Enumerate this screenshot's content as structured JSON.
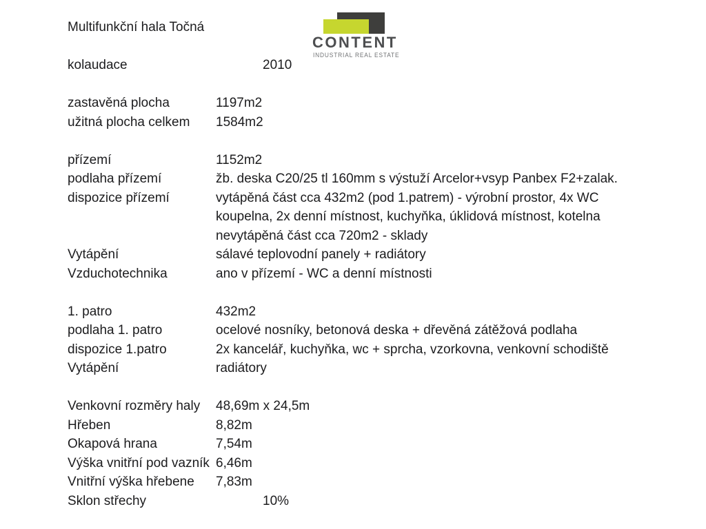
{
  "logo": {
    "name": "CONTENT",
    "tagline": "INDUSTRIAL REAL ESTATE",
    "colors": {
      "dark_shape": "#3e3e3c",
      "accent_shape": "#c6d62f",
      "wordmark_text": "#4d4e50",
      "tagline_text": "#717375"
    }
  },
  "document": {
    "title": "Multifunkční hala Točná",
    "text_color": "#1c1c1e",
    "rows": [
      {
        "type": "title"
      },
      {
        "type": "spacer"
      },
      {
        "label": "kolaudace",
        "value": "2010",
        "indent": true
      },
      {
        "type": "spacer"
      },
      {
        "label": "zastavěná plocha",
        "value": "1197m2"
      },
      {
        "label": "užitná plocha celkem",
        "value": "1584m2"
      },
      {
        "type": "spacer"
      },
      {
        "label": "přízemí",
        "value": "1152m2"
      },
      {
        "label": "podlaha přízemí",
        "value": "žb. deska C20/25 tl 160mm s výstuží Arcelor+vsyp Panbex F2+zalak."
      },
      {
        "label": "dispozice přízemí",
        "value": "vytápěná část cca 432m2 (pod 1.patrem) - výrobní prostor, 4x WC"
      },
      {
        "label": "",
        "value": "koupelna, 2x denní místnost, kuchyňka, úklidová místnost, kotelna"
      },
      {
        "label": "",
        "value": "nevytápěná část cca 720m2 - sklady"
      },
      {
        "label": "Vytápění",
        "value": "sálavé teplovodní panely + radiátory"
      },
      {
        "label": "Vzduchotechnika",
        "value": "ano v přízemí - WC a denní místnosti"
      },
      {
        "type": "spacer"
      },
      {
        "label": "1. patro",
        "value": "432m2"
      },
      {
        "label": "podlaha 1. patro",
        "value": "ocelové nosníky, betonová deska + dřevěná zátěžová podlaha"
      },
      {
        "label": "dispozice 1.patro",
        "value": "2x kancelář, kuchyňka, wc + sprcha, vzorkovna, venkovní schodiště"
      },
      {
        "label": "Vytápění",
        "value": "radiátory"
      },
      {
        "type": "spacer"
      },
      {
        "label": "Venkovní rozměry haly",
        "value": "48,69m x 24,5m"
      },
      {
        "label": "Hřeben",
        "value": "8,82m"
      },
      {
        "label": "Okapová hrana",
        "value": "7,54m"
      },
      {
        "label": "Výška vnitřní pod vazník",
        "value": "6,46m"
      },
      {
        "label": "Vnitřní výška hřebene",
        "value": "7,83m"
      },
      {
        "label": "Sklon střechy",
        "value": "10%",
        "indent": true
      }
    ]
  }
}
